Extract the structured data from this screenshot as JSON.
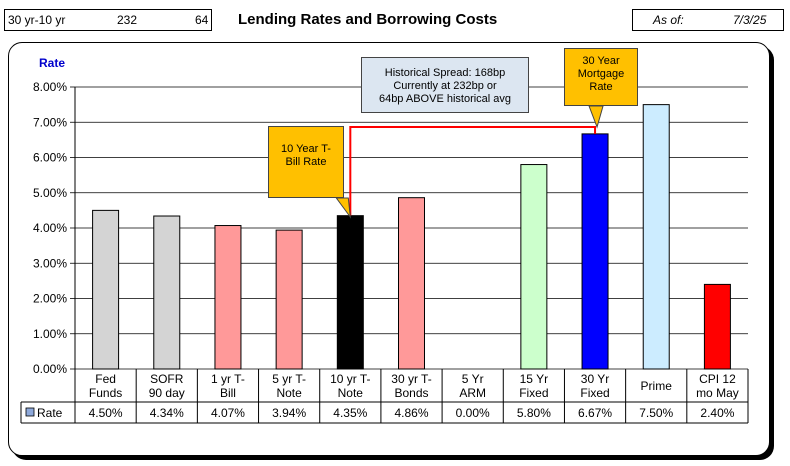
{
  "header": {
    "spread_label": "30 yr-10 yr",
    "spread_value": "232",
    "spread_diff": "64",
    "title": "Lending Rates and Borrowing Costs",
    "as_of_label": "As of:",
    "as_of_date": "7/3/25"
  },
  "colors": {
    "gray": "#D4D4D4",
    "pink": "#FF9999",
    "black": "#000000",
    "light_green": "#CCFFCC",
    "blue": "#0000FF",
    "light_blue": "#CCECFF",
    "red": "#FF0000",
    "callout_orange": "#FFC000",
    "callout_blue": "#DCE6F1",
    "spread_line": "#FF0000",
    "ylabel": "#0000CC"
  },
  "chart_data": {
    "type": "bar",
    "ylabel": "Rate",
    "ylim": [
      0,
      8
    ],
    "yticks": [
      "0.00%",
      "1.00%",
      "2.00%",
      "3.00%",
      "4.00%",
      "5.00%",
      "6.00%",
      "7.00%",
      "8.00%"
    ],
    "grid": true,
    "categories": [
      [
        "Fed",
        "Funds"
      ],
      [
        "SOFR",
        "90 day"
      ],
      [
        "1 yr  T-",
        "Bill"
      ],
      [
        "5 yr T-",
        "Note"
      ],
      [
        "10 yr T-",
        "Note"
      ],
      [
        "30 yr T-",
        "Bonds"
      ],
      [
        "5 Yr",
        "ARM"
      ],
      [
        "15 Yr",
        "Fixed"
      ],
      [
        "30 Yr",
        "Fixed"
      ],
      [
        "Prime",
        ""
      ],
      [
        "CPI 12",
        "mo May"
      ]
    ],
    "series": [
      {
        "name": "Rate",
        "values": [
          4.5,
          4.34,
          4.07,
          3.94,
          4.35,
          4.86,
          0.0,
          5.8,
          6.67,
          7.5,
          2.4
        ],
        "labels": [
          "4.50%",
          "4.34%",
          "4.07%",
          "3.94%",
          "4.35%",
          "4.86%",
          "0.00%",
          "5.80%",
          "6.67%",
          "7.50%",
          "2.40%"
        ],
        "bar_colors": [
          "gray",
          "gray",
          "pink",
          "pink",
          "black",
          "pink",
          "pink",
          "light_green",
          "blue",
          "light_blue",
          "red"
        ]
      }
    ],
    "annotations": {
      "ten_year": [
        "10 Year T-",
        "Bill Rate"
      ],
      "thirty_year": [
        "30 Year",
        "Mortgage",
        "Rate"
      ],
      "spread": [
        "Historical Spread: 168bp",
        "Currently at 232bp  or",
        "64bp ABOVE historical avg"
      ]
    }
  }
}
